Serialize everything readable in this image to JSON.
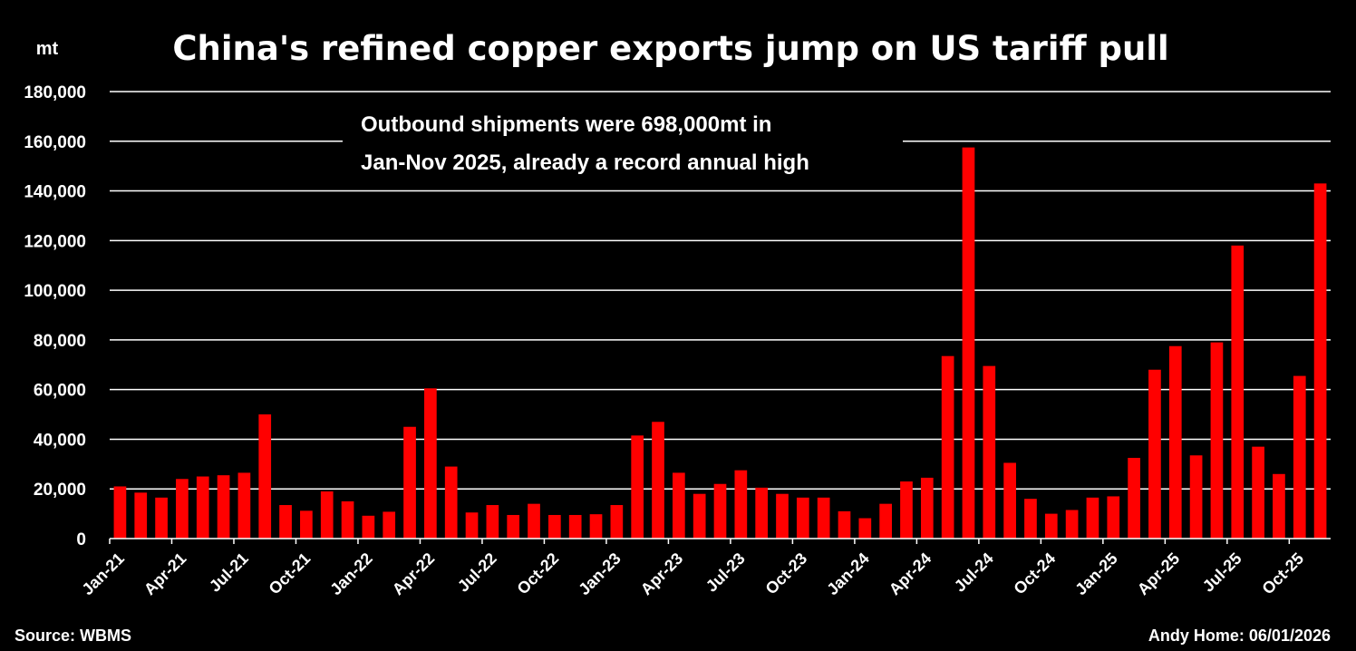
{
  "chart_data": {
    "type": "bar",
    "title": "China's refined copper exports jump on US tariff pull",
    "ylabel": "mt",
    "xlabel": "",
    "ylim": [
      0,
      180000
    ],
    "yticks": [
      0,
      20000,
      40000,
      60000,
      80000,
      100000,
      120000,
      140000,
      160000,
      180000
    ],
    "ytick_labels": [
      "0",
      "20,000",
      "40,000",
      "60,000",
      "80,000",
      "100,000",
      "120,000",
      "140,000",
      "160,000",
      "180,000"
    ],
    "xtick_labels": [
      "Jan-21",
      "Apr-21",
      "Jul-21",
      "Oct-21",
      "Jan-22",
      "Apr-22",
      "Jul-22",
      "Oct-22",
      "Jan-23",
      "Apr-23",
      "Jul-23",
      "Oct-23",
      "Jan-24",
      "Apr-24",
      "Jul-24",
      "Oct-24",
      "Jan-25",
      "Apr-25",
      "Jul-25",
      "Oct-25"
    ],
    "grid": true,
    "bar_color": "#ff0000",
    "series": [
      {
        "name": "Refined copper exports",
        "values": [
          21000,
          18500,
          16500,
          24000,
          25000,
          25500,
          26500,
          50000,
          13500,
          11200,
          19000,
          15000,
          9200,
          10800,
          45000,
          60500,
          29000,
          10500,
          13500,
          9500,
          14000,
          9500,
          9500,
          9800,
          13500,
          41500,
          47000,
          26500,
          18000,
          22000,
          27500,
          20500,
          18000,
          16500,
          16500,
          11000,
          8200,
          14000,
          23000,
          24500,
          73500,
          157500,
          69500,
          30500,
          16000,
          10000,
          11500,
          16500,
          17000,
          32500,
          68000,
          77500,
          33500,
          79000,
          118000,
          37000,
          26000,
          65500,
          143000
        ]
      }
    ],
    "annotation": {
      "line1": "Outbound shipments were 698,000mt in",
      "line2": "Jan-Nov 2025, already a record annual high"
    },
    "source": "Source: WBMS",
    "credit": "Andy Home: 06/01/2026"
  }
}
